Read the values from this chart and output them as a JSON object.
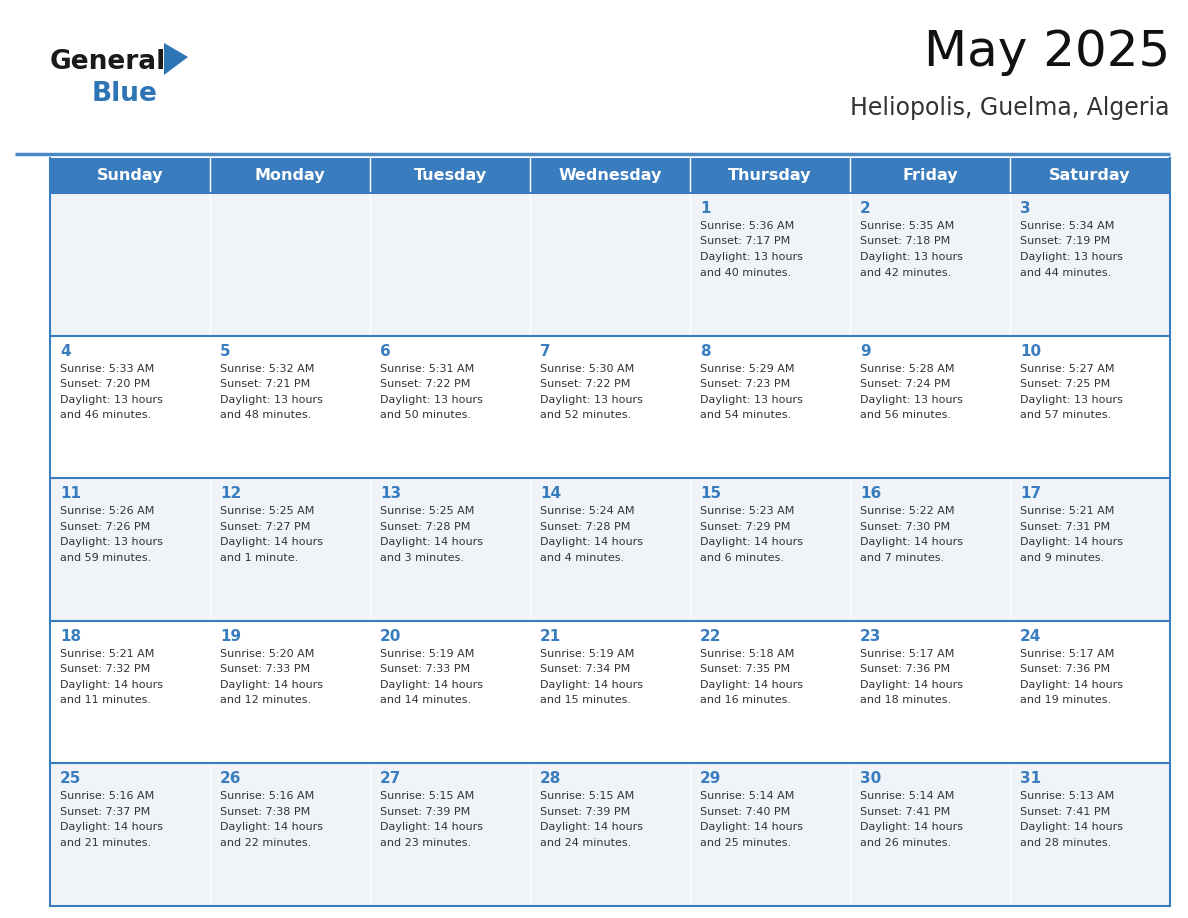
{
  "title": "May 2025",
  "subtitle": "Heliopolis, Guelma, Algeria",
  "days_of_week": [
    "Sunday",
    "Monday",
    "Tuesday",
    "Wednesday",
    "Thursday",
    "Friday",
    "Saturday"
  ],
  "header_bg": "#3a7dbf",
  "header_text": "#ffffff",
  "row_bg_light": "#f0f4f8",
  "row_bg_white": "#ffffff",
  "day_num_color": "#3a7dbf",
  "cell_text_color": "#333333",
  "border_color": "#3a7dbf",
  "sep_line_color": "#4a8ac4",
  "logo_text_color": "#1a1a1a",
  "logo_blue_color": "#2e75b6",
  "calendar_data": [
    [
      null,
      null,
      null,
      null,
      {
        "day": "1",
        "sunrise": "5:36 AM",
        "sunset": "7:17 PM",
        "daylight_line1": "Daylight: 13 hours",
        "daylight_line2": "and 40 minutes."
      },
      {
        "day": "2",
        "sunrise": "5:35 AM",
        "sunset": "7:18 PM",
        "daylight_line1": "Daylight: 13 hours",
        "daylight_line2": "and 42 minutes."
      },
      {
        "day": "3",
        "sunrise": "5:34 AM",
        "sunset": "7:19 PM",
        "daylight_line1": "Daylight: 13 hours",
        "daylight_line2": "and 44 minutes."
      }
    ],
    [
      {
        "day": "4",
        "sunrise": "5:33 AM",
        "sunset": "7:20 PM",
        "daylight_line1": "Daylight: 13 hours",
        "daylight_line2": "and 46 minutes."
      },
      {
        "day": "5",
        "sunrise": "5:32 AM",
        "sunset": "7:21 PM",
        "daylight_line1": "Daylight: 13 hours",
        "daylight_line2": "and 48 minutes."
      },
      {
        "day": "6",
        "sunrise": "5:31 AM",
        "sunset": "7:22 PM",
        "daylight_line1": "Daylight: 13 hours",
        "daylight_line2": "and 50 minutes."
      },
      {
        "day": "7",
        "sunrise": "5:30 AM",
        "sunset": "7:22 PM",
        "daylight_line1": "Daylight: 13 hours",
        "daylight_line2": "and 52 minutes."
      },
      {
        "day": "8",
        "sunrise": "5:29 AM",
        "sunset": "7:23 PM",
        "daylight_line1": "Daylight: 13 hours",
        "daylight_line2": "and 54 minutes."
      },
      {
        "day": "9",
        "sunrise": "5:28 AM",
        "sunset": "7:24 PM",
        "daylight_line1": "Daylight: 13 hours",
        "daylight_line2": "and 56 minutes."
      },
      {
        "day": "10",
        "sunrise": "5:27 AM",
        "sunset": "7:25 PM",
        "daylight_line1": "Daylight: 13 hours",
        "daylight_line2": "and 57 minutes."
      }
    ],
    [
      {
        "day": "11",
        "sunrise": "5:26 AM",
        "sunset": "7:26 PM",
        "daylight_line1": "Daylight: 13 hours",
        "daylight_line2": "and 59 minutes."
      },
      {
        "day": "12",
        "sunrise": "5:25 AM",
        "sunset": "7:27 PM",
        "daylight_line1": "Daylight: 14 hours",
        "daylight_line2": "and 1 minute."
      },
      {
        "day": "13",
        "sunrise": "5:25 AM",
        "sunset": "7:28 PM",
        "daylight_line1": "Daylight: 14 hours",
        "daylight_line2": "and 3 minutes."
      },
      {
        "day": "14",
        "sunrise": "5:24 AM",
        "sunset": "7:28 PM",
        "daylight_line1": "Daylight: 14 hours",
        "daylight_line2": "and 4 minutes."
      },
      {
        "day": "15",
        "sunrise": "5:23 AM",
        "sunset": "7:29 PM",
        "daylight_line1": "Daylight: 14 hours",
        "daylight_line2": "and 6 minutes."
      },
      {
        "day": "16",
        "sunrise": "5:22 AM",
        "sunset": "7:30 PM",
        "daylight_line1": "Daylight: 14 hours",
        "daylight_line2": "and 7 minutes."
      },
      {
        "day": "17",
        "sunrise": "5:21 AM",
        "sunset": "7:31 PM",
        "daylight_line1": "Daylight: 14 hours",
        "daylight_line2": "and 9 minutes."
      }
    ],
    [
      {
        "day": "18",
        "sunrise": "5:21 AM",
        "sunset": "7:32 PM",
        "daylight_line1": "Daylight: 14 hours",
        "daylight_line2": "and 11 minutes."
      },
      {
        "day": "19",
        "sunrise": "5:20 AM",
        "sunset": "7:33 PM",
        "daylight_line1": "Daylight: 14 hours",
        "daylight_line2": "and 12 minutes."
      },
      {
        "day": "20",
        "sunrise": "5:19 AM",
        "sunset": "7:33 PM",
        "daylight_line1": "Daylight: 14 hours",
        "daylight_line2": "and 14 minutes."
      },
      {
        "day": "21",
        "sunrise": "5:19 AM",
        "sunset": "7:34 PM",
        "daylight_line1": "Daylight: 14 hours",
        "daylight_line2": "and 15 minutes."
      },
      {
        "day": "22",
        "sunrise": "5:18 AM",
        "sunset": "7:35 PM",
        "daylight_line1": "Daylight: 14 hours",
        "daylight_line2": "and 16 minutes."
      },
      {
        "day": "23",
        "sunrise": "5:17 AM",
        "sunset": "7:36 PM",
        "daylight_line1": "Daylight: 14 hours",
        "daylight_line2": "and 18 minutes."
      },
      {
        "day": "24",
        "sunrise": "5:17 AM",
        "sunset": "7:36 PM",
        "daylight_line1": "Daylight: 14 hours",
        "daylight_line2": "and 19 minutes."
      }
    ],
    [
      {
        "day": "25",
        "sunrise": "5:16 AM",
        "sunset": "7:37 PM",
        "daylight_line1": "Daylight: 14 hours",
        "daylight_line2": "and 21 minutes."
      },
      {
        "day": "26",
        "sunrise": "5:16 AM",
        "sunset": "7:38 PM",
        "daylight_line1": "Daylight: 14 hours",
        "daylight_line2": "and 22 minutes."
      },
      {
        "day": "27",
        "sunrise": "5:15 AM",
        "sunset": "7:39 PM",
        "daylight_line1": "Daylight: 14 hours",
        "daylight_line2": "and 23 minutes."
      },
      {
        "day": "28",
        "sunrise": "5:15 AM",
        "sunset": "7:39 PM",
        "daylight_line1": "Daylight: 14 hours",
        "daylight_line2": "and 24 minutes."
      },
      {
        "day": "29",
        "sunrise": "5:14 AM",
        "sunset": "7:40 PM",
        "daylight_line1": "Daylight: 14 hours",
        "daylight_line2": "and 25 minutes."
      },
      {
        "day": "30",
        "sunrise": "5:14 AM",
        "sunset": "7:41 PM",
        "daylight_line1": "Daylight: 14 hours",
        "daylight_line2": "and 26 minutes."
      },
      {
        "day": "31",
        "sunrise": "5:13 AM",
        "sunset": "7:41 PM",
        "daylight_line1": "Daylight: 14 hours",
        "daylight_line2": "and 28 minutes."
      }
    ]
  ]
}
